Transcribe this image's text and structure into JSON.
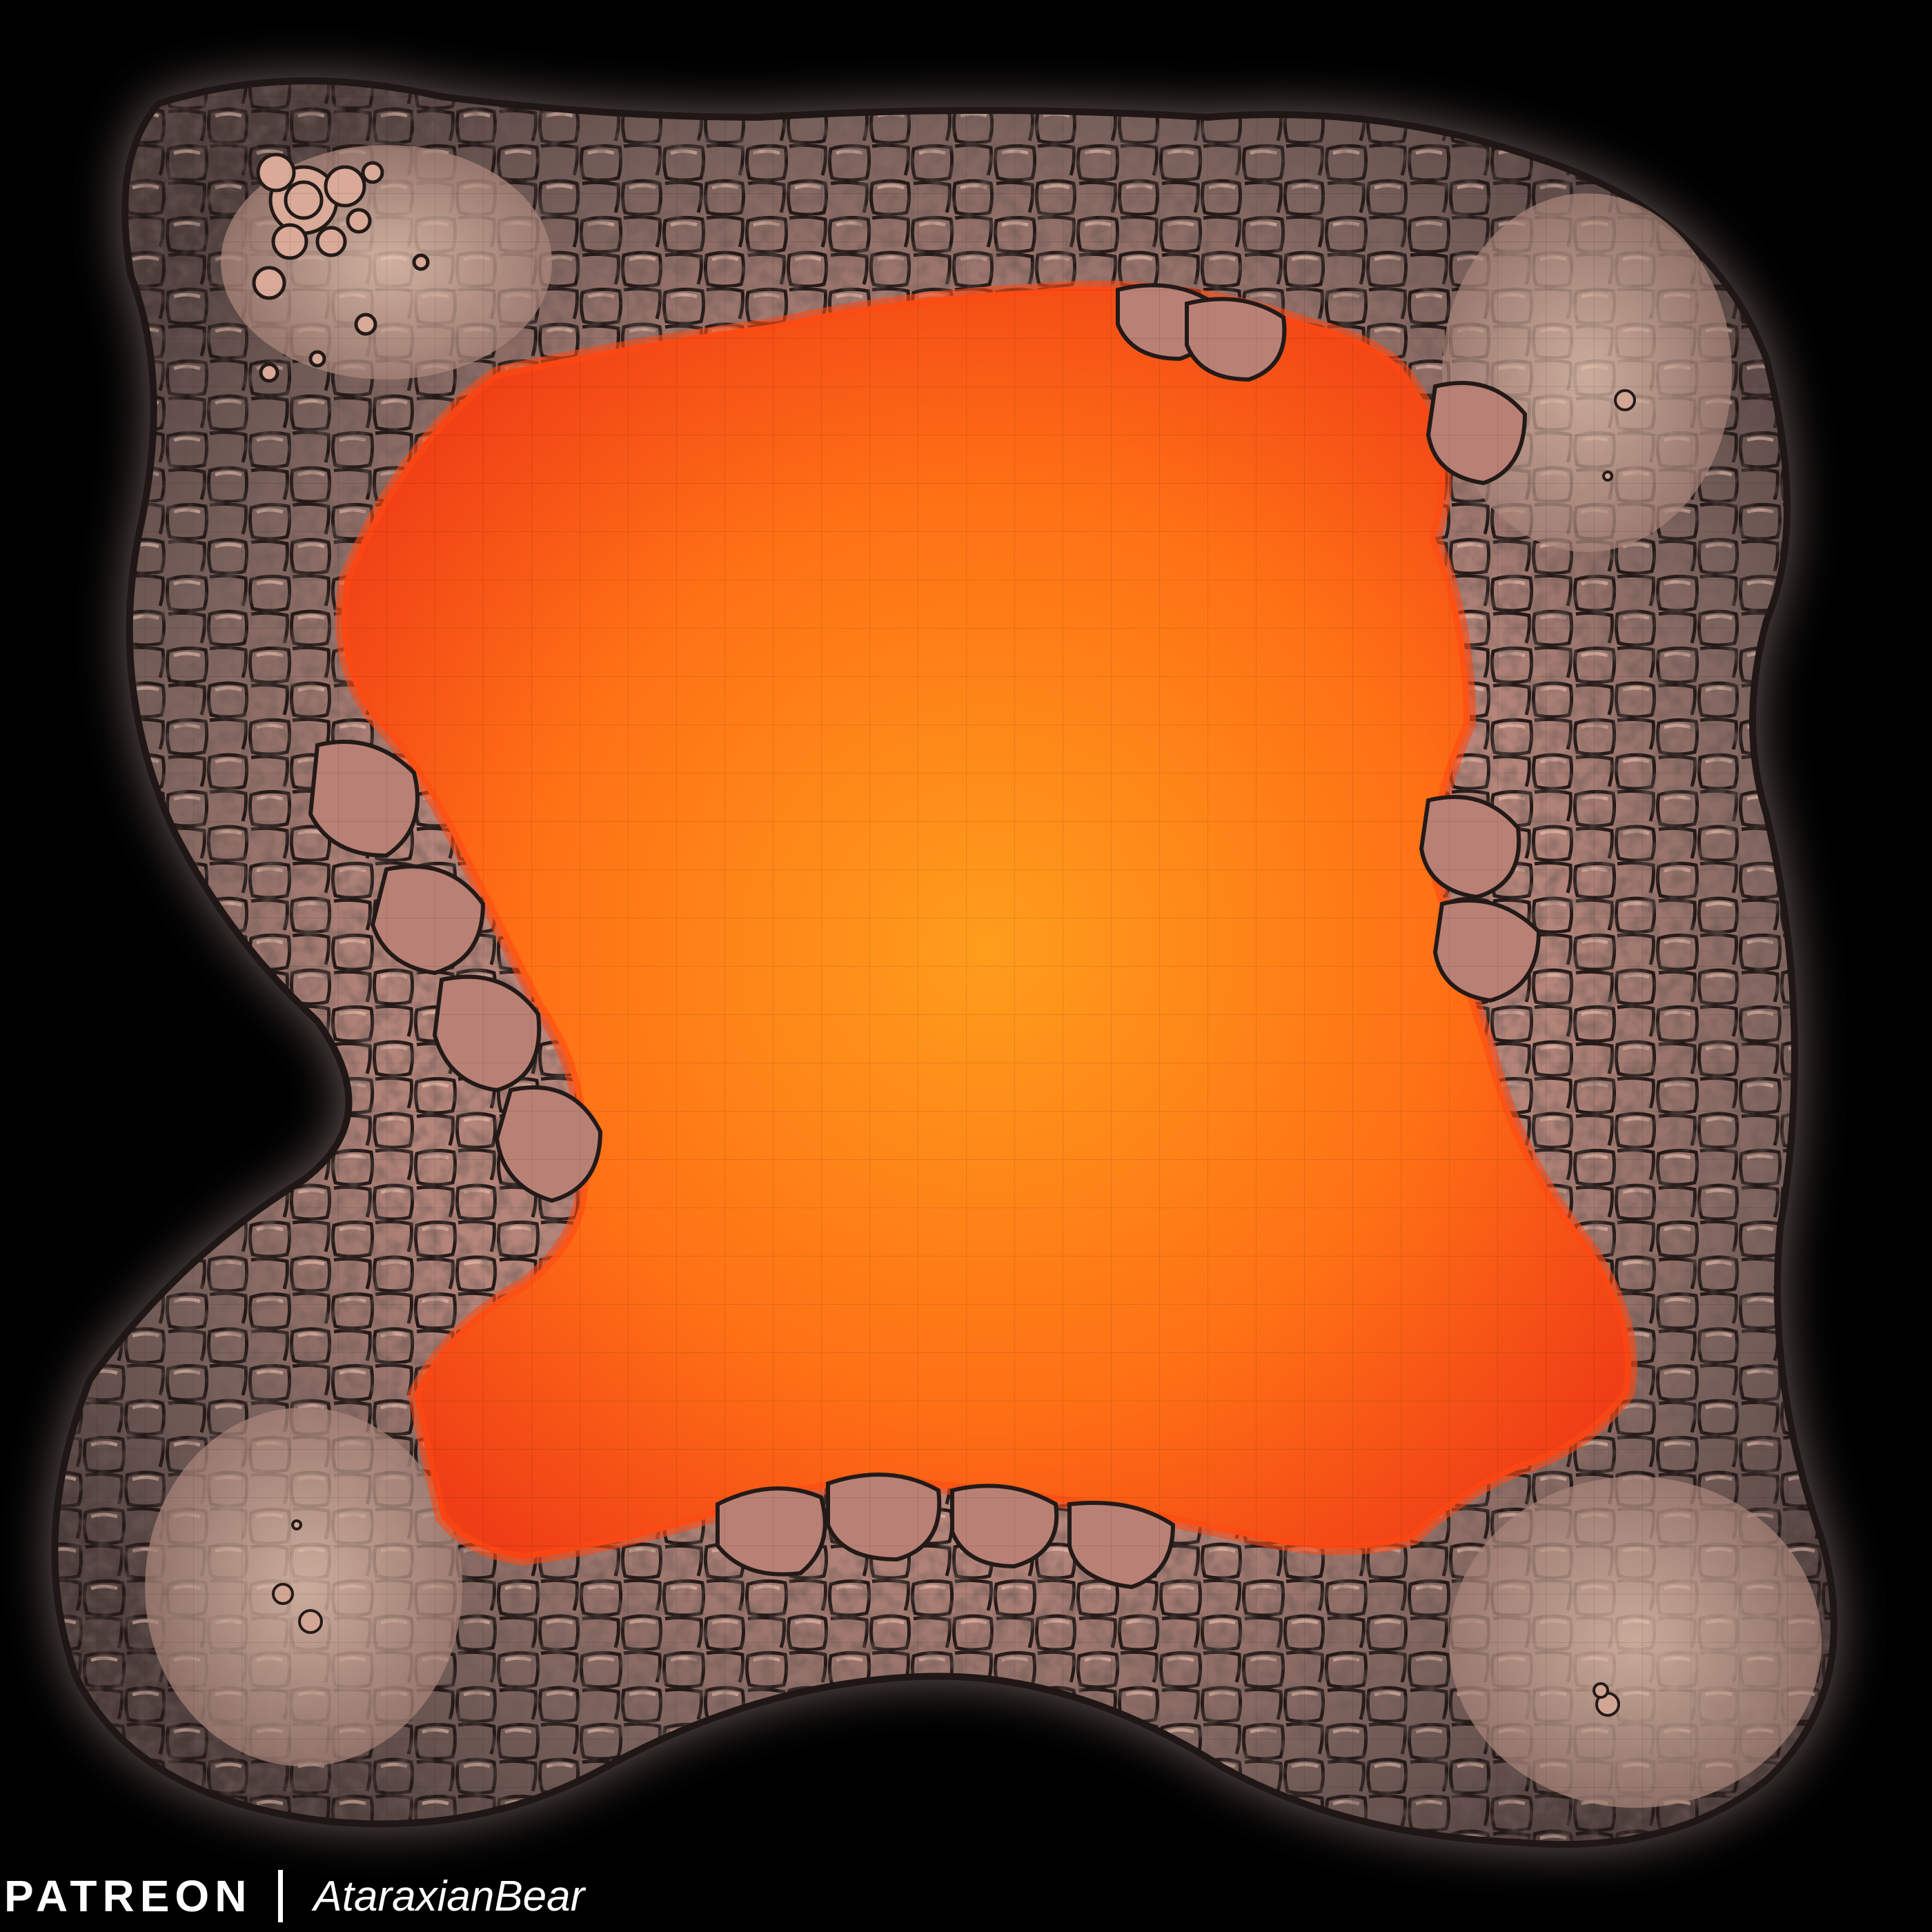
{
  "watermark": {
    "brand": "PATREON",
    "author": "AtaraxianBear"
  },
  "map": {
    "features": [
      "lava-lake",
      "cave-rock-wall",
      "stone-ledge-top-left",
      "stone-ledge-top-right",
      "stone-ledge-bottom-left",
      "stone-ledge-bottom-right",
      "rubble-pile",
      "grid-overlay"
    ],
    "colors": {
      "background": "#000000",
      "lava_bright": "#ffb62a",
      "lava_mid": "#ff7a16",
      "lava_deep": "#e8301a",
      "rock_light": "#c9968a",
      "rock_dark": "#5a4744",
      "rock_outline": "#231a18",
      "ledge_floor": "#d8b3a4",
      "grid_line": "#000000"
    }
  }
}
